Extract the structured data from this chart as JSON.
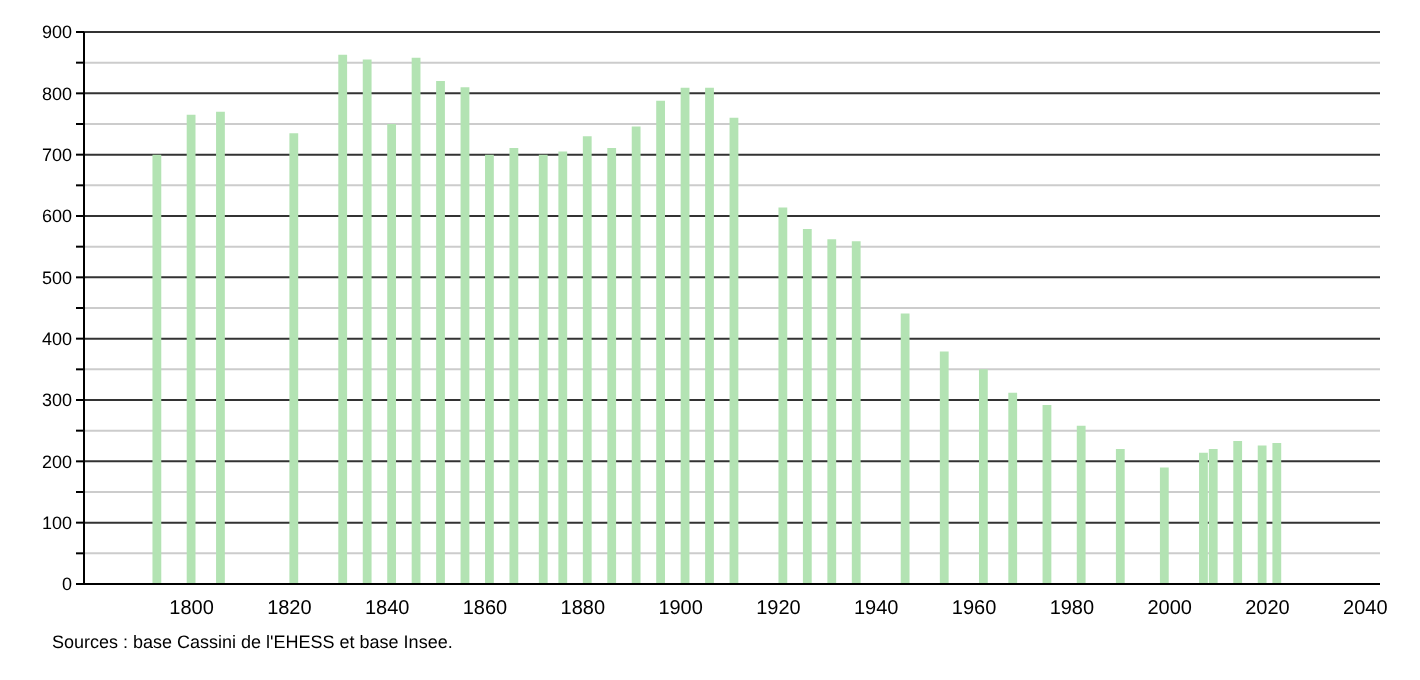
{
  "chart_data": {
    "type": "bar",
    "x": [
      1793,
      1800,
      1806,
      1821,
      1831,
      1836,
      1841,
      1846,
      1851,
      1856,
      1861,
      1866,
      1872,
      1876,
      1881,
      1886,
      1891,
      1896,
      1901,
      1906,
      1911,
      1921,
      1926,
      1931,
      1936,
      1946,
      1954,
      1962,
      1968,
      1975,
      1982,
      1990,
      1999,
      2007,
      2009,
      2014,
      2019,
      2022
    ],
    "values": [
      700,
      765,
      770,
      735,
      863,
      855,
      750,
      858,
      820,
      810,
      700,
      711,
      700,
      705,
      730,
      711,
      746,
      788,
      809,
      809,
      760,
      614,
      579,
      562,
      559,
      441,
      379,
      350,
      312,
      292,
      258,
      220,
      190,
      214,
      220,
      233,
      226,
      230
    ],
    "color": "#b3e3b3",
    "xlim": [
      1778,
      2043
    ],
    "xticks": [
      1800,
      1820,
      1840,
      1860,
      1880,
      1900,
      1920,
      1940,
      1960,
      1980,
      2000,
      2020,
      2040
    ],
    "ylim": [
      0,
      900
    ],
    "yticks": [
      0,
      {
        "value": 50,
        "label": null
      },
      100,
      {
        "value": 150,
        "label": null
      },
      200,
      {
        "value": 250,
        "label": null
      },
      300,
      {
        "value": 350,
        "label": null
      },
      400,
      {
        "value": 450,
        "label": null
      },
      500,
      {
        "value": 550,
        "label": null
      },
      600,
      {
        "value": 650,
        "label": null
      },
      700,
      {
        "value": 750,
        "label": null
      },
      800,
      {
        "value": 850,
        "label": null
      },
      900
    ],
    "grid": "y",
    "annotations": [
      "Sources : base Cassini de l'EHESS et base Insee."
    ]
  }
}
